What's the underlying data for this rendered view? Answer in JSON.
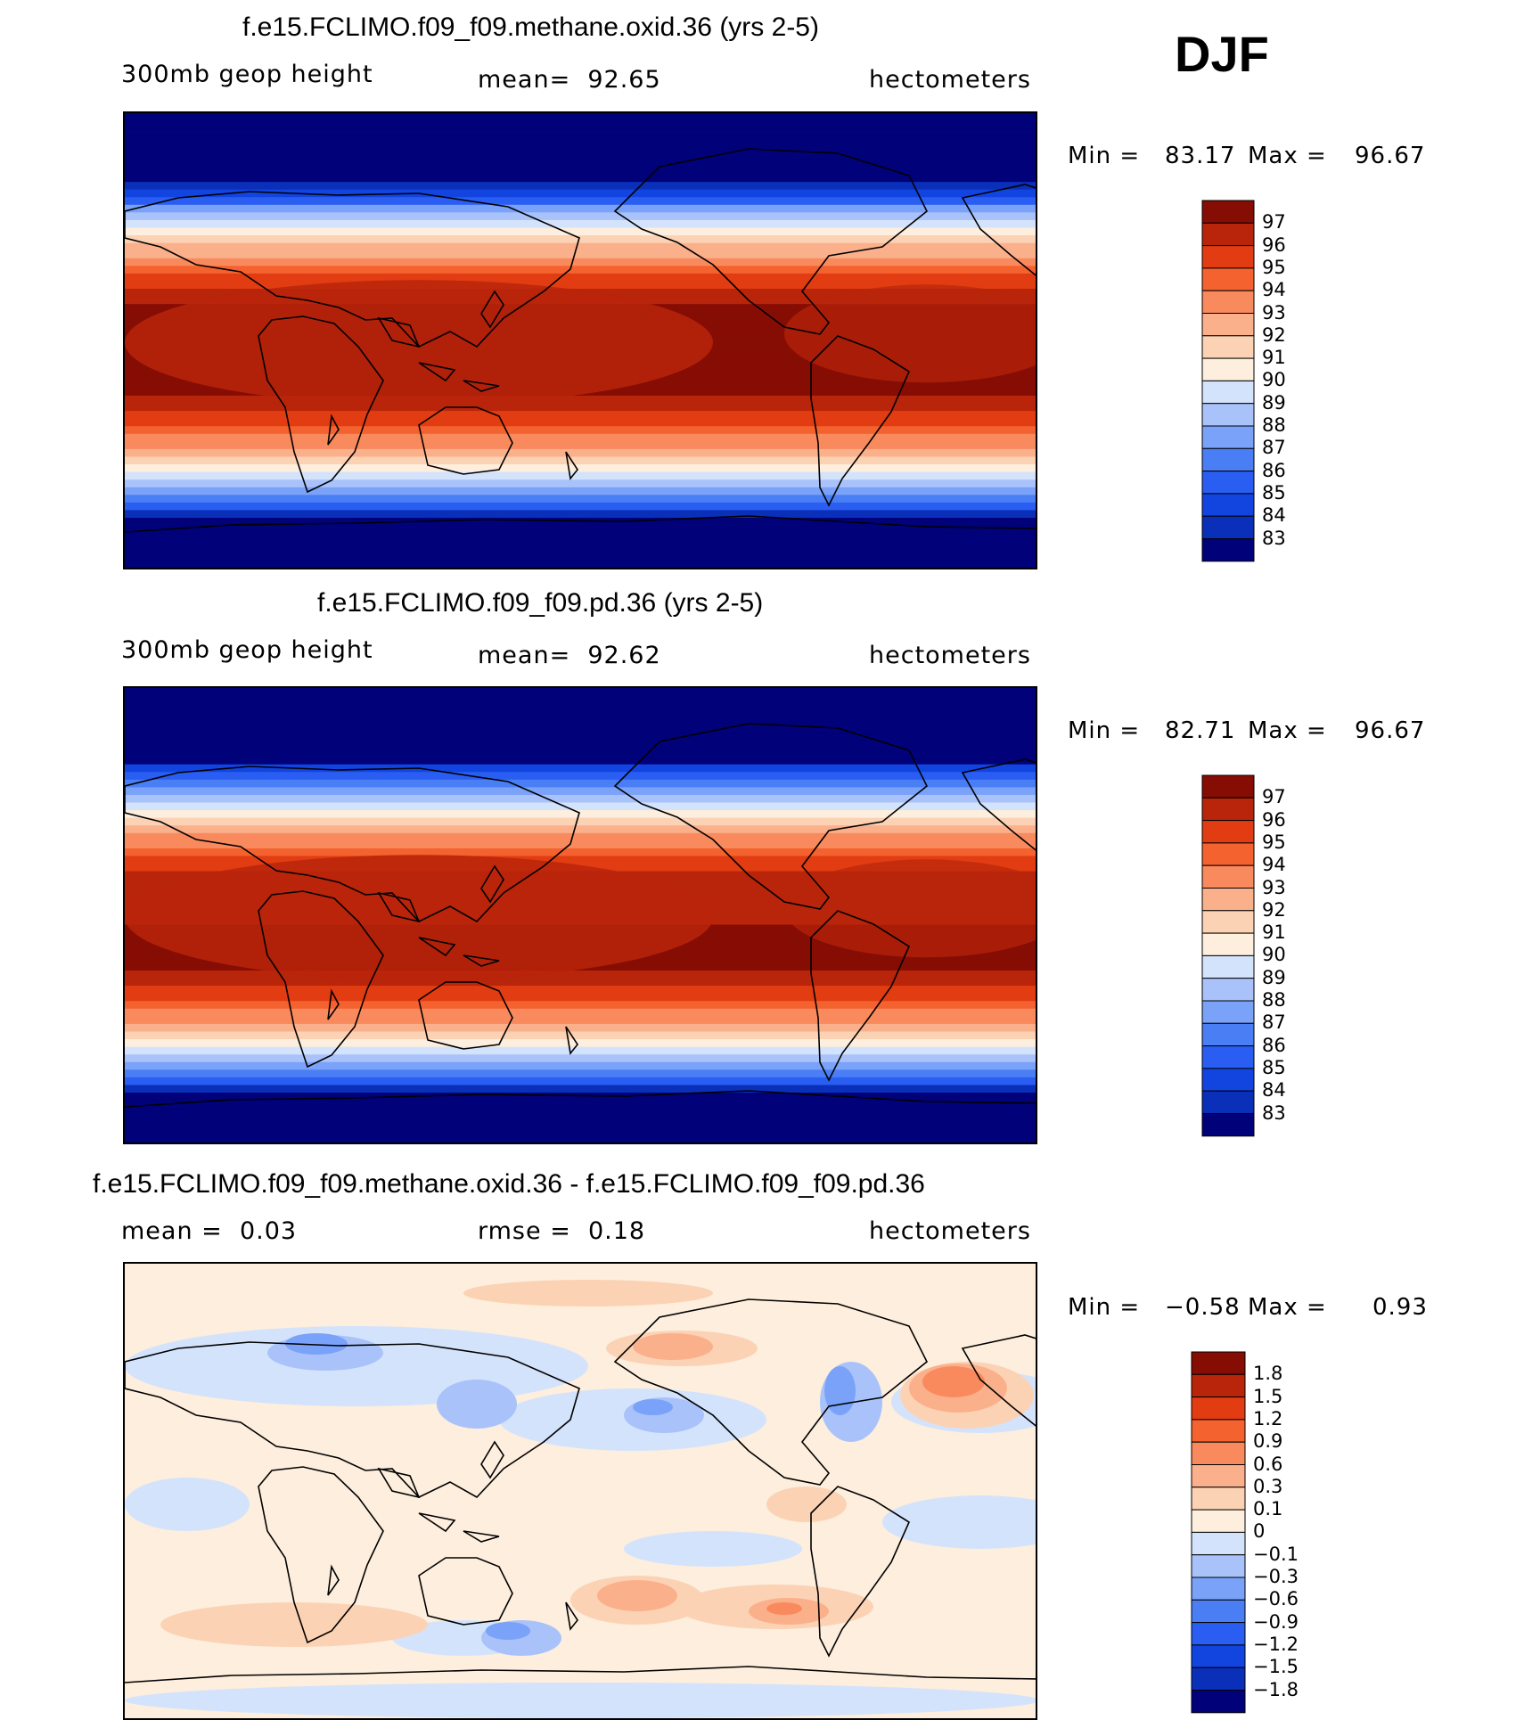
{
  "season": "DJF",
  "panels": [
    {
      "title": "f.e15.FCLIMO.f09_f09.methane.oxid.36 (yrs 2-5)",
      "left_label": "300mb geop height",
      "stat_label": "mean=  92.65",
      "units": "hectometers",
      "min_label": "Min =",
      "min_value": "83.17",
      "max_label": "Max =",
      "max_value": "96.67",
      "kind": "abs",
      "colorbar": {
        "colors": [
          "#01017a",
          "#0a2fb8",
          "#1244e0",
          "#2a5ef2",
          "#4a7ef5",
          "#7aa2f8",
          "#a9c3fa",
          "#d4e3fc",
          "#fdeedd",
          "#fcd2b5",
          "#fbb08c",
          "#f98a5e",
          "#f4622f",
          "#e23c12",
          "#b8250a",
          "#860d04"
        ],
        "ticks": [
          "83",
          "84",
          "85",
          "86",
          "87",
          "88",
          "89",
          "90",
          "91",
          "92",
          "93",
          "94",
          "95",
          "96",
          "97"
        ]
      }
    },
    {
      "title": "f.e15.FCLIMO.f09_f09.pd.36 (yrs 2-5)",
      "left_label": "300mb geop height",
      "stat_label": "mean=  92.62",
      "units": "hectometers",
      "min_label": "Min =",
      "min_value": "82.71",
      "max_label": "Max =",
      "max_value": "96.67",
      "kind": "abs",
      "colorbar": {
        "colors": [
          "#01017a",
          "#0a2fb8",
          "#1244e0",
          "#2a5ef2",
          "#4a7ef5",
          "#7aa2f8",
          "#a9c3fa",
          "#d4e3fc",
          "#fdeedd",
          "#fcd2b5",
          "#fbb08c",
          "#f98a5e",
          "#f4622f",
          "#e23c12",
          "#b8250a",
          "#860d04"
        ],
        "ticks": [
          "83",
          "84",
          "85",
          "86",
          "87",
          "88",
          "89",
          "90",
          "91",
          "92",
          "93",
          "94",
          "95",
          "96",
          "97"
        ]
      }
    },
    {
      "title": "f.e15.FCLIMO.f09_f09.methane.oxid.36 - f.e15.FCLIMO.f09_f09.pd.36",
      "left_label": "mean =  0.03",
      "stat_label": "rmse =  0.18",
      "units": "hectometers",
      "min_label": "Min =",
      "min_value": "−0.58",
      "max_label": "Max =",
      "max_value": "0.93",
      "kind": "diff",
      "colorbar": {
        "colors": [
          "#01017a",
          "#0a2fb8",
          "#1244e0",
          "#2a5ef2",
          "#4a7ef5",
          "#7aa2f8",
          "#a9c3fa",
          "#d4e3fc",
          "#fdeedd",
          "#fcd2b5",
          "#fbb08c",
          "#f98a5e",
          "#f4622f",
          "#e23c12",
          "#b8250a",
          "#860d04"
        ],
        "ticks": [
          "−1.8",
          "−1.5",
          "−1.2",
          "−0.9",
          "−0.6",
          "−0.3",
          "−0.1",
          "0",
          "0.1",
          "0.3",
          "0.6",
          "0.9",
          "1.2",
          "1.5",
          "1.8"
        ]
      }
    }
  ]
}
